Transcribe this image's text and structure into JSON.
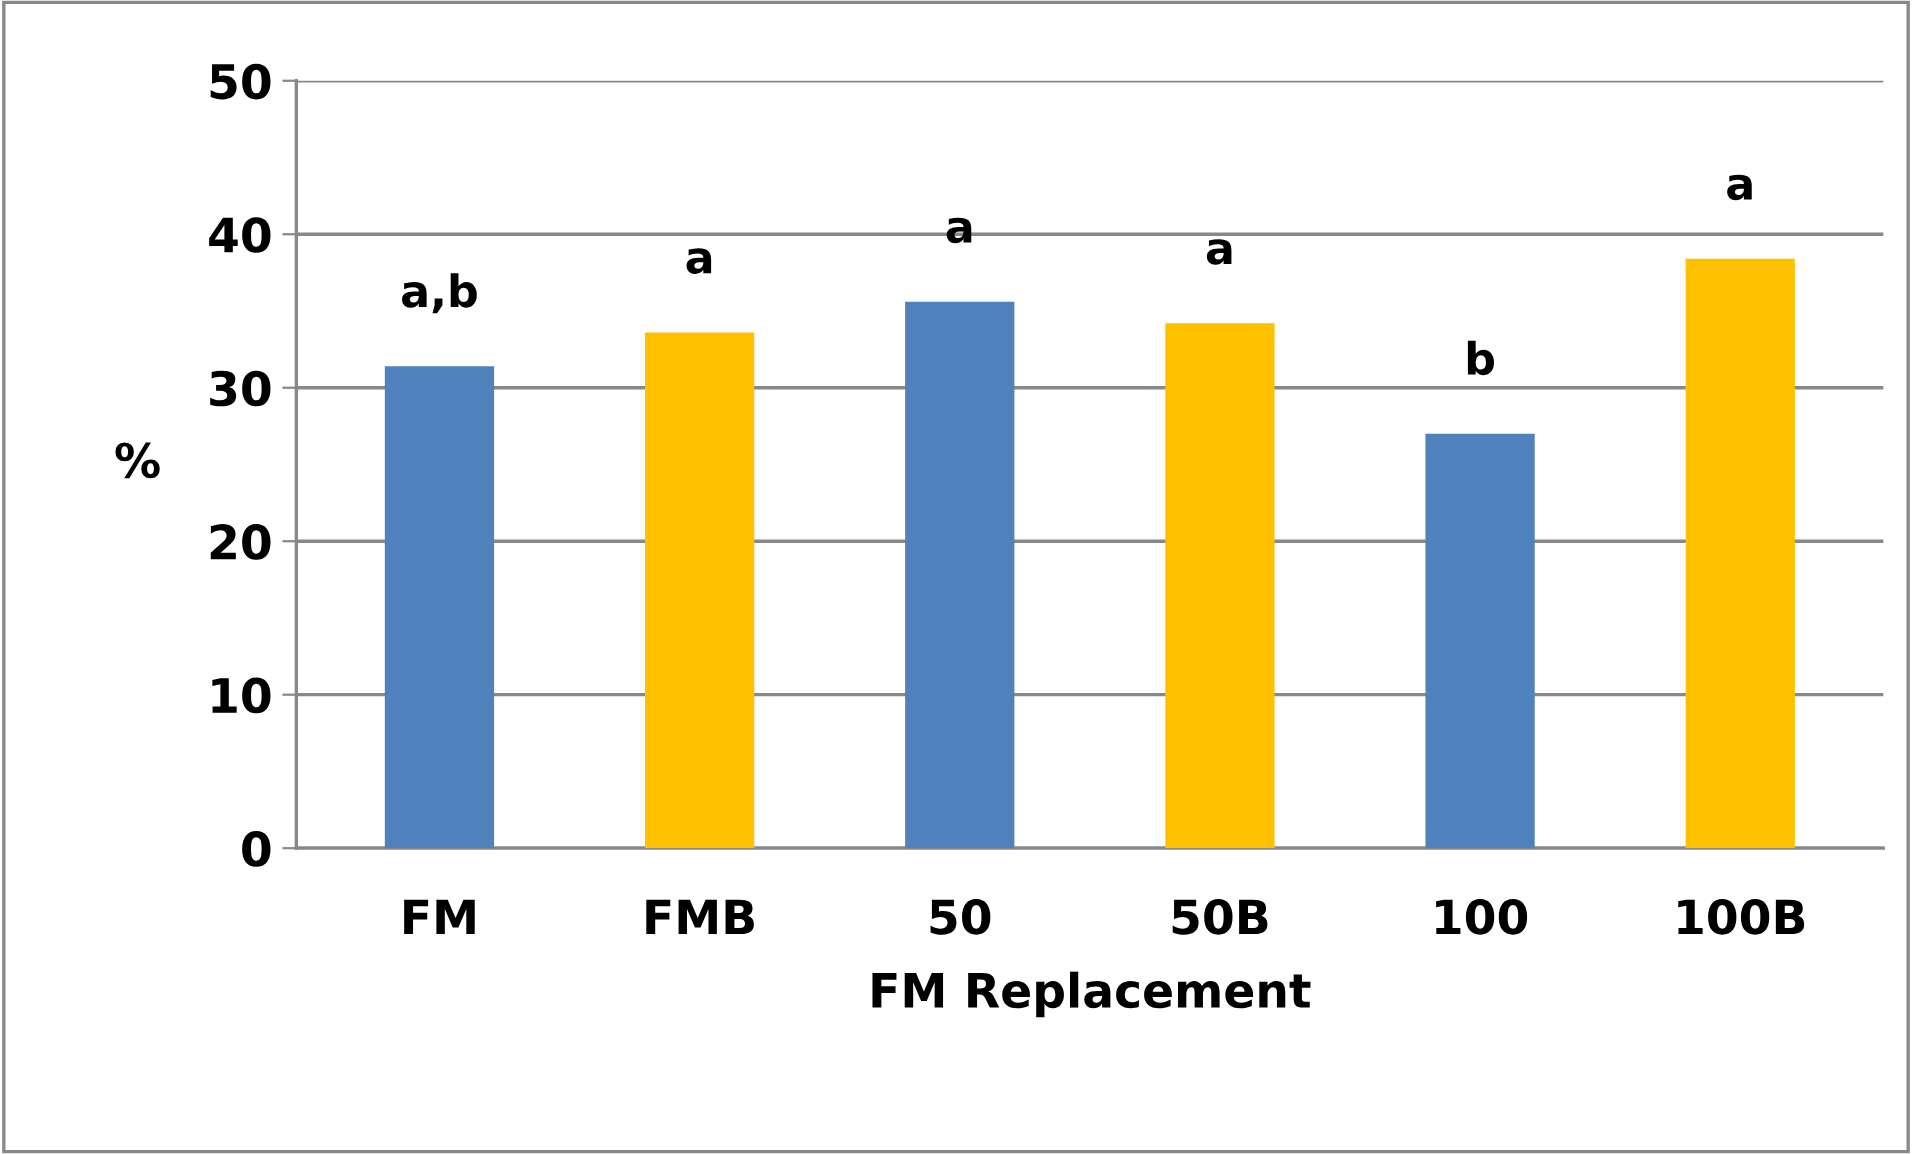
{
  "chart_data": {
    "type": "bar",
    "xlabel": "FM Replacement",
    "ylabel": "%",
    "categories": [
      "FM",
      "FMB",
      "50",
      "50B",
      "100",
      "100B"
    ],
    "values": [
      31.4,
      33.6,
      35.6,
      34.2,
      27.0,
      38.4
    ],
    "colors": [
      "#4f81bd",
      "#ffc000",
      "#4f81bd",
      "#ffc000",
      "#4f81bd",
      "#ffc000"
    ],
    "ylim": [
      0,
      50
    ],
    "yticks": [
      0,
      10,
      20,
      30,
      40,
      50
    ],
    "grid": "y",
    "annotations": [
      {
        "text": "a,b",
        "x": "FM",
        "y": 31.4
      },
      {
        "text": "a",
        "x": "FMB",
        "y": 33.6
      },
      {
        "text": "a",
        "x": "50",
        "y": 35.6
      },
      {
        "text": "a",
        "x": "50B",
        "y": 34.2
      },
      {
        "text": "b",
        "x": "100",
        "y": 27.0
      },
      {
        "text": "a",
        "x": "100B",
        "y": 38.4
      }
    ]
  }
}
